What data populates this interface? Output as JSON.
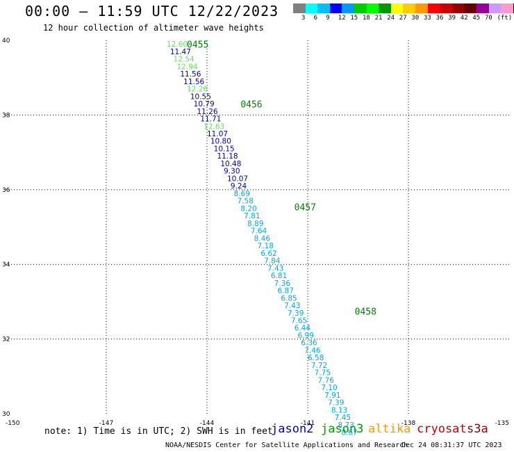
{
  "header": {
    "title": "00:00 – 11:59 UTC 12/22/2023",
    "subtitle": "12 hour collection of altimeter wave heights"
  },
  "colorbar": {
    "swatches": [
      "#808080",
      "#00ffff",
      "#00bfff",
      "#0000ff",
      "#0099ff",
      "#00cc00",
      "#00ff00",
      "#009900",
      "#ffff00",
      "#ffcc00",
      "#ff9900",
      "#ff0000",
      "#cc0000",
      "#990000",
      "#660000",
      "#990099",
      "#cc99ff",
      "#ff99cc",
      "#000000"
    ],
    "labels": [
      "3",
      "6",
      "9",
      "12",
      "15",
      "18",
      "21",
      "24",
      "27",
      "30",
      "33",
      "36",
      "39",
      "42",
      "45",
      "70",
      "(ft)"
    ]
  },
  "chart_data": {
    "type": "scatter",
    "title": "00:00 – 11:59 UTC 12/22/2023",
    "subtitle": "12 hour collection of altimeter wave heights",
    "xlabel": "",
    "ylabel": "",
    "xlim": [
      -150,
      -135
    ],
    "ylim": [
      30,
      40
    ],
    "x_ticks": [
      "-150",
      "-147",
      "-144",
      "-141",
      "-138",
      "-135"
    ],
    "y_ticks": [
      "40",
      "38",
      "36",
      "34",
      "32",
      "30"
    ],
    "grid": true,
    "time_labels": [
      {
        "text": "0455",
        "lon": -144.6,
        "lat": 39.8
      },
      {
        "text": "0456",
        "lon": -143.0,
        "lat": 38.2
      },
      {
        "text": "0457",
        "lon": -141.4,
        "lat": 35.45
      },
      {
        "text": "0458",
        "lon": -139.6,
        "lat": 32.65
      }
    ],
    "points": [
      {
        "lon": -145.2,
        "lat": 39.83,
        "v": "12.60",
        "sat": "jason3"
      },
      {
        "lon": -145.1,
        "lat": 39.63,
        "v": "11.47",
        "sat": "jason2"
      },
      {
        "lon": -145.0,
        "lat": 39.43,
        "v": "12.54",
        "sat": "jason3"
      },
      {
        "lon": -144.9,
        "lat": 39.23,
        "v": "12.94",
        "sat": "jason3"
      },
      {
        "lon": -144.8,
        "lat": 39.03,
        "v": "11.56",
        "sat": "jason2"
      },
      {
        "lon": -144.7,
        "lat": 38.83,
        "v": "11.56",
        "sat": "jason2"
      },
      {
        "lon": -144.6,
        "lat": 38.63,
        "v": "12.26",
        "sat": "jason3"
      },
      {
        "lon": -144.5,
        "lat": 38.43,
        "v": "10.55",
        "sat": "jason2"
      },
      {
        "lon": -144.4,
        "lat": 38.23,
        "v": "10.79",
        "sat": "jason2"
      },
      {
        "lon": -144.3,
        "lat": 38.03,
        "v": "11.26",
        "sat": "jason2"
      },
      {
        "lon": -144.2,
        "lat": 37.83,
        "v": "11.71",
        "sat": "jason2"
      },
      {
        "lon": -144.1,
        "lat": 37.63,
        "v": "12.63",
        "sat": "jason3"
      },
      {
        "lon": -144.0,
        "lat": 37.43,
        "v": "11.07",
        "sat": "jason2"
      },
      {
        "lon": -143.9,
        "lat": 37.23,
        "v": "10.80",
        "sat": "jason2"
      },
      {
        "lon": -143.8,
        "lat": 37.03,
        "v": "10.15",
        "sat": "jason2"
      },
      {
        "lon": -143.7,
        "lat": 36.83,
        "v": "11.18",
        "sat": "jason2"
      },
      {
        "lon": -143.6,
        "lat": 36.63,
        "v": "10.48",
        "sat": "jason2"
      },
      {
        "lon": -143.5,
        "lat": 36.43,
        "v": "9.30",
        "sat": "jason2"
      },
      {
        "lon": -143.4,
        "lat": 36.23,
        "v": "10.07",
        "sat": "jason2"
      },
      {
        "lon": -143.3,
        "lat": 36.03,
        "v": "9.24",
        "sat": "jason2"
      },
      {
        "lon": -143.2,
        "lat": 35.83,
        "v": "8.69",
        "sat": "jason2"
      },
      {
        "lon": -143.1,
        "lat": 35.63,
        "v": "7.58",
        "sat": "jason2"
      },
      {
        "lon": -143.0,
        "lat": 35.43,
        "v": "8.20",
        "sat": "jason2"
      },
      {
        "lon": -142.9,
        "lat": 35.23,
        "v": "7.81",
        "sat": "jason2"
      },
      {
        "lon": -142.8,
        "lat": 35.03,
        "v": "8.89",
        "sat": "jason2"
      },
      {
        "lon": -142.7,
        "lat": 34.83,
        "v": "7.64",
        "sat": "jason2"
      },
      {
        "lon": -142.6,
        "lat": 34.63,
        "v": "8.46",
        "sat": "jason2"
      },
      {
        "lon": -142.5,
        "lat": 34.43,
        "v": "7.18",
        "sat": "jason2"
      },
      {
        "lon": -142.4,
        "lat": 34.23,
        "v": "6.62",
        "sat": "jason2"
      },
      {
        "lon": -142.3,
        "lat": 34.03,
        "v": "7.84",
        "sat": "jason2"
      },
      {
        "lon": -142.2,
        "lat": 33.83,
        "v": "7.43",
        "sat": "jason2"
      },
      {
        "lon": -142.1,
        "lat": 33.63,
        "v": "6.81",
        "sat": "jason2"
      },
      {
        "lon": -142.0,
        "lat": 33.43,
        "v": "7.36",
        "sat": "jason2"
      },
      {
        "lon": -141.9,
        "lat": 33.23,
        "v": "6.87",
        "sat": "jason2"
      },
      {
        "lon": -141.8,
        "lat": 33.03,
        "v": "6.85",
        "sat": "jason2"
      },
      {
        "lon": -141.7,
        "lat": 32.83,
        "v": "7.43",
        "sat": "jason2"
      },
      {
        "lon": -141.6,
        "lat": 32.63,
        "v": "7.39",
        "sat": "jason2"
      },
      {
        "lon": -141.5,
        "lat": 32.43,
        "v": "7.65",
        "sat": "jason2"
      },
      {
        "lon": -141.4,
        "lat": 32.23,
        "v": "6.44",
        "sat": "jason2"
      },
      {
        "lon": -141.3,
        "lat": 32.03,
        "v": "6.99",
        "sat": "jason2"
      },
      {
        "lon": -141.2,
        "lat": 31.83,
        "v": "6.36",
        "sat": "jason2"
      },
      {
        "lon": -141.1,
        "lat": 31.63,
        "v": "7.46",
        "sat": "jason2"
      },
      {
        "lon": -141.0,
        "lat": 31.43,
        "v": "6.58",
        "sat": "jason2"
      },
      {
        "lon": -140.9,
        "lat": 31.23,
        "v": "7.72",
        "sat": "jason2"
      },
      {
        "lon": -140.8,
        "lat": 31.03,
        "v": "7.75",
        "sat": "jason2"
      },
      {
        "lon": -140.7,
        "lat": 30.83,
        "v": "7.76",
        "sat": "jason2"
      },
      {
        "lon": -140.6,
        "lat": 30.63,
        "v": "7.10",
        "sat": "jason2"
      },
      {
        "lon": -140.5,
        "lat": 30.43,
        "v": "7.91",
        "sat": "jason2"
      },
      {
        "lon": -140.4,
        "lat": 30.23,
        "v": "7.39",
        "sat": "jason2"
      },
      {
        "lon": -140.3,
        "lat": 30.03,
        "v": "8.13",
        "sat": "jason2"
      },
      {
        "lon": -140.2,
        "lat": 29.83,
        "v": "7.45",
        "sat": "jason2"
      },
      {
        "lon": -140.1,
        "lat": 29.63,
        "v": "8.73",
        "sat": "jason2"
      },
      {
        "lon": -140.0,
        "lat": 29.43,
        "v": "8.67",
        "sat": "jason2"
      }
    ]
  },
  "colors": {
    "time_label": "#008000",
    "cyan_value": "#00a8e8",
    "navy_value": "#0000aa",
    "light_green_value": "#66dd66"
  },
  "footer": {
    "note": "note: 1) Time is in UTC; 2) SWH is in feet",
    "satellites": [
      {
        "name": "jason2",
        "color": "#0000cc"
      },
      {
        "name": "jason3",
        "color": "#009900"
      },
      {
        "name": "altika",
        "color": "#ff9900"
      },
      {
        "name": "cryosat",
        "color": "#cc0000"
      },
      {
        "name": "s3a",
        "color": "#880000"
      }
    ],
    "credit": "NOAA/NESDIS Center for Satellite Applications and Research",
    "timestamp": "Dec 24 08:31:37 UTC 2023"
  }
}
